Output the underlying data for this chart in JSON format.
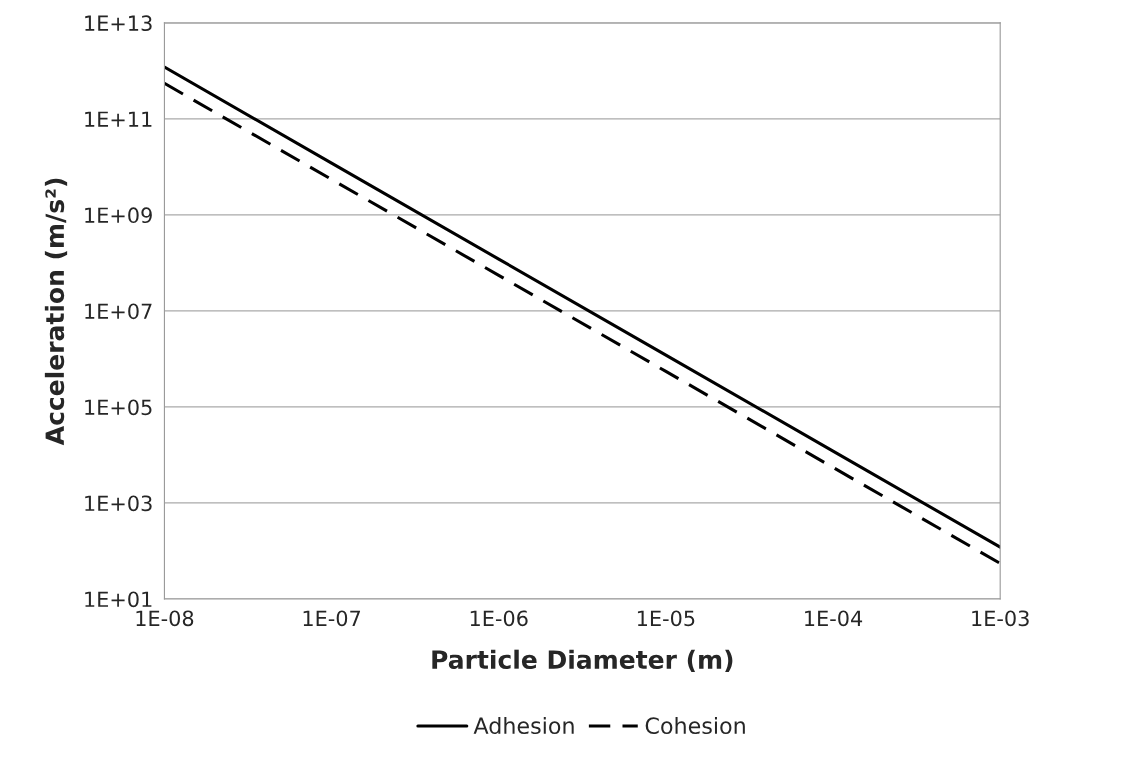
{
  "chart_data": {
    "type": "line",
    "xlabel": "Particle Diameter (m)",
    "ylabel": "Acceleration (m/s²)",
    "series": [
      {
        "name": "Adhesion",
        "color": "#000000",
        "line_style": "solid",
        "x": [
          1e-08,
          1e-07,
          1e-06,
          1e-05,
          0.0001,
          0.001
        ],
        "values": [
          1200000000000.0,
          12000000000.0,
          120000000.0,
          1200000.0,
          12000.0,
          120.0
        ]
      },
      {
        "name": "Cohesion",
        "color": "#000000",
        "line_style": "dashed",
        "x": [
          1e-08,
          1e-07,
          1e-06,
          1e-05,
          0.0001,
          0.001
        ],
        "values": [
          550000000000.0,
          5500000000.0,
          55000000.0,
          550000.0,
          5500.0,
          55.0
        ]
      }
    ],
    "log": "xy",
    "xlim": [
      1e-08,
      0.001
    ],
    "ylim": [
      10,
      10000000000000.0
    ],
    "xticks": [
      {
        "value": 1e-08,
        "label": "1E-08"
      },
      {
        "value": 1e-07,
        "label": "1E-07"
      },
      {
        "value": 1e-06,
        "label": "1E-06"
      },
      {
        "value": 1e-05,
        "label": "1E-05"
      },
      {
        "value": 0.0001,
        "label": "1E-04"
      },
      {
        "value": 0.001,
        "label": "1E-03"
      }
    ],
    "yticks": [
      {
        "value": 10,
        "label": "1E+01"
      },
      {
        "value": 1000,
        "label": "1E+03"
      },
      {
        "value": 100000.0,
        "label": "1E+05"
      },
      {
        "value": 10000000.0,
        "label": "1E+07"
      },
      {
        "value": 1000000000.0,
        "label": "1E+09"
      },
      {
        "value": 100000000000.0,
        "label": "1E+11"
      },
      {
        "value": 10000000000000.0,
        "label": "1E+13"
      }
    ],
    "grid": "y",
    "legend": "bottom",
    "marker": "none"
  }
}
